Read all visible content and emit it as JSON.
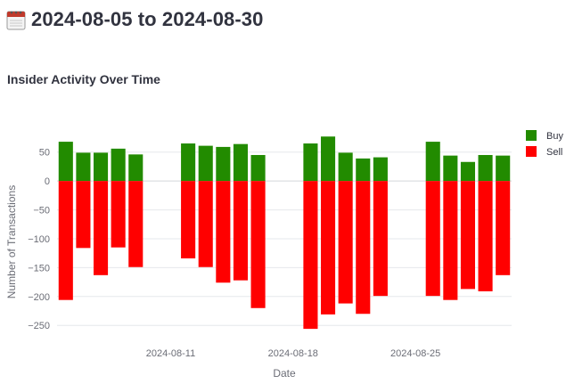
{
  "header": {
    "title": "2024-08-05 to 2024-08-30",
    "icon": "calendar-icon"
  },
  "colors": {
    "buy": "#228b00",
    "sell": "#ff0000",
    "text": "#31333f",
    "axis_text": "#6b6d76",
    "grid": "#e6e8ec",
    "zero_line": "#d4d6da"
  },
  "chart_data": {
    "type": "bar",
    "title": "Insider Activity Over Time",
    "xlabel": "Date",
    "ylabel": "Number of Transactions",
    "barmode": "relative",
    "ylim": [
      -262,
      82
    ],
    "grid": true,
    "legend_position": "top-right",
    "yticks": [
      50,
      0,
      -50,
      -100,
      -150,
      -200,
      -250
    ],
    "ytick_labels": [
      "50",
      "0",
      "−50",
      "−100",
      "−150",
      "−200",
      "−250"
    ],
    "xticks": [
      "2024-08-11",
      "2024-08-18",
      "2024-08-25"
    ],
    "xlim": [
      "2024-08-04 12:00",
      "2024-08-30 12:00"
    ],
    "categories": [
      "2024-08-05",
      "2024-08-06",
      "2024-08-07",
      "2024-08-08",
      "2024-08-09",
      "2024-08-12",
      "2024-08-13",
      "2024-08-14",
      "2024-08-15",
      "2024-08-16",
      "2024-08-19",
      "2024-08-20",
      "2024-08-21",
      "2024-08-22",
      "2024-08-23",
      "2024-08-26",
      "2024-08-27",
      "2024-08-28",
      "2024-08-29",
      "2024-08-30"
    ],
    "series": [
      {
        "name": "Buy",
        "color": "#228b00",
        "values": [
          68,
          49,
          49,
          56,
          46,
          65,
          61,
          59,
          64,
          45,
          65,
          77,
          49,
          39,
          41,
          68,
          44,
          33,
          45,
          44
        ]
      },
      {
        "name": "Sell",
        "color": "#ff0000",
        "values": [
          -206,
          -116,
          -163,
          -115,
          -149,
          -134,
          -149,
          -176,
          -172,
          -220,
          -256,
          -231,
          -212,
          -230,
          -199,
          -199,
          -206,
          -187,
          -191,
          -163
        ]
      }
    ]
  }
}
